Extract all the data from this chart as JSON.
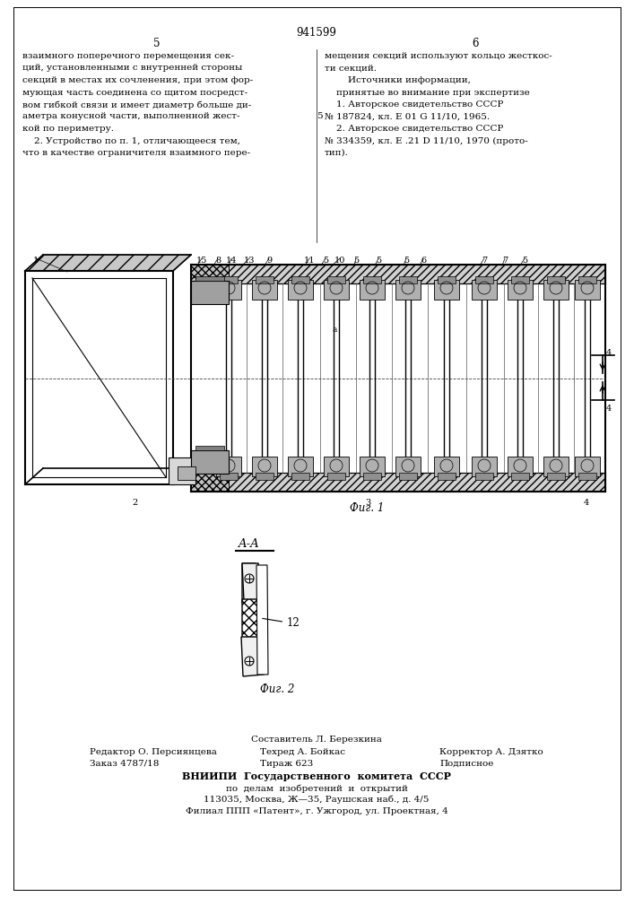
{
  "patent_number": "941599",
  "page_left": "5",
  "page_right": "6",
  "bg_color": "#ffffff",
  "left_col_lines": [
    "взаимного поперечного перемещения сек-",
    "ций, установленными с внутренней стороны",
    "секций в местах их сочленения, при этом фор-",
    "мующая часть соединена со щитом посредст-",
    "вом гибкой связи и имеет диаметр больше ди-",
    "аметра конусной части, выполненной жест-",
    "кой по периметру.",
    "    2. Устройство по п. 1, отличающееся тем,",
    "что в качестве ограничителя взаимного пере-"
  ],
  "right_col_lines": [
    "мещения секций используют кольцо жесткос-",
    "ти секций.",
    "        Источники информации,",
    "    принятые во внимание при экспертизе",
    "    1. Авторское свидетельство СССР",
    "№ 187824, кл. Е 01 G 11/10, 1965.",
    "    2. Авторское свидетельство СССР",
    "№ 334359, кл. Е .21 D 11/10, 1970 (прото-",
    "тип)."
  ],
  "fig1_caption": "Фиг. 1",
  "fig2_caption": "Фиг. 2",
  "aa_label": "A-A",
  "footer_line0": "Составитель Л. Березкина",
  "footer_line1a": "Редактор О. Персиянцева",
  "footer_line1b": "Техред А. Бойкас",
  "footer_line1c": "Корректор А. Дзятко",
  "footer_line2a": "Заказ 4787/18",
  "footer_line2b": "Тираж 623",
  "footer_line2c": "Подписное",
  "footer_line3": "ВНИИПИ  Государственного  комитета  СССР",
  "footer_line4": "по  делам  изобретений  и  открытий",
  "footer_line5": "113035, Москва, Ж—35, Раушская наб., д. 4/5",
  "footer_line6": "Филиал ППП «Патент», г. Ужгород, ул. Проектная, 4"
}
